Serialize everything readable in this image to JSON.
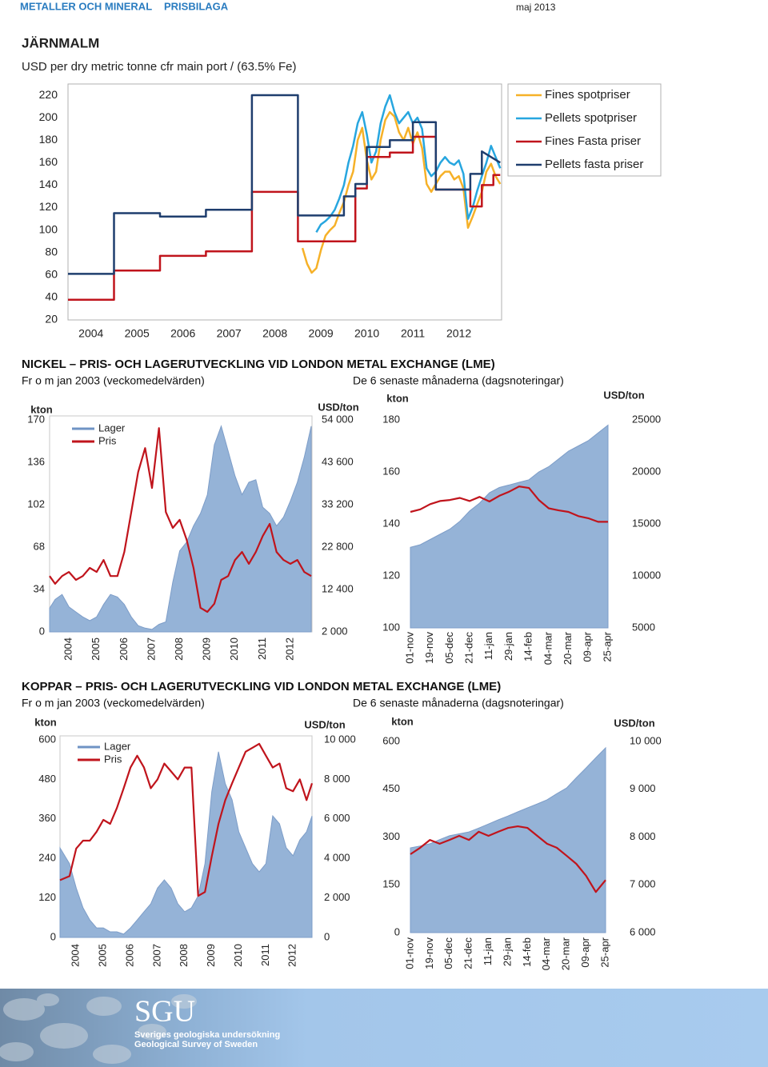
{
  "header": {
    "section": "METALLER OCH MINERAL",
    "subsection": "PRISBILAGA",
    "date": "maj 2013"
  },
  "sections": [
    {
      "title": "NICKEL – PRIS- OCH LAGERUTVECKLING VID LONDON METAL EXCHANGE (LME)",
      "left_subtitle": "Fr o m jan 2003 (veckomedelvärden)",
      "right_subtitle": "De 6 senaste månaderna (dagsnoteringar)"
    },
    {
      "title": "KOPPAR – PRIS- OCH LAGERUTVECKLING VID LONDON METAL EXCHANGE (LME)",
      "left_subtitle": "Fr o m jan 2003 (veckomedelvärden)",
      "right_subtitle": "De 6 senaste månaderna (dagsnoteringar)"
    }
  ],
  "footer": {
    "logo": "SGU",
    "line1": "Sveriges geologiska undersökning",
    "line2": "Geological Survey of Sweden"
  },
  "chart_data": [
    {
      "type": "line",
      "title": "JÄRNMALM",
      "subtitle": "USD per dry metric tonne cfr main port / (63.5% Fe)",
      "xlim": [
        2004,
        2013.43
      ],
      "xticks": [
        {
          "value": 2004.5,
          "label": "2004"
        },
        {
          "value": 2005.5,
          "label": "2005"
        },
        {
          "value": 2006.5,
          "label": "2006"
        },
        {
          "value": 2007.5,
          "label": "2007"
        },
        {
          "value": 2008.5,
          "label": "2008"
        },
        {
          "value": 2009.5,
          "label": "2009"
        },
        {
          "value": 2010.5,
          "label": "2010"
        },
        {
          "value": 2011.5,
          "label": "2011"
        },
        {
          "value": 2012.5,
          "label": "2012"
        }
      ],
      "ylim": [
        20,
        230
      ],
      "yticks": [
        20,
        40,
        60,
        80,
        100,
        120,
        140,
        160,
        180,
        200,
        220
      ],
      "legend": "right",
      "series": [
        {
          "name": "Fines spotpriser",
          "color": "#f6b128",
          "x": [
            2009.1,
            2009.2,
            2009.3,
            2009.4,
            2009.5,
            2009.6,
            2009.7,
            2009.8,
            2009.9,
            2010,
            2010.1,
            2010.2,
            2010.3,
            2010.4,
            2010.5,
            2010.6,
            2010.7,
            2010.8,
            2010.9,
            2011,
            2011.1,
            2011.2,
            2011.3,
            2011.4,
            2011.5,
            2011.6,
            2011.7,
            2011.8,
            2011.9,
            2012,
            2012.1,
            2012.2,
            2012.3,
            2012.4,
            2012.5,
            2012.6,
            2012.7,
            2012.8,
            2012.9,
            2013,
            2013.1,
            2013.2,
            2013.3,
            2013.4
          ],
          "values": [
            84,
            70,
            62,
            66,
            82,
            95,
            100,
            104,
            115,
            125,
            140,
            152,
            180,
            191,
            162,
            145,
            152,
            180,
            198,
            205,
            201,
            187,
            180,
            191,
            177,
            187,
            173,
            141,
            134,
            141,
            148,
            152,
            152,
            145,
            148,
            137,
            102,
            112,
            123,
            134,
            152,
            159,
            148,
            141
          ]
        },
        {
          "name": "Pellets spotpriser",
          "color": "#27a6df",
          "x": [
            2009.4,
            2009.5,
            2009.6,
            2009.7,
            2009.8,
            2009.9,
            2010,
            2010.1,
            2010.2,
            2010.3,
            2010.4,
            2010.5,
            2010.6,
            2010.7,
            2010.8,
            2010.9,
            2011,
            2011.1,
            2011.2,
            2011.3,
            2011.4,
            2011.5,
            2011.6,
            2011.7,
            2011.8,
            2011.9,
            2012,
            2012.1,
            2012.2,
            2012.3,
            2012.4,
            2012.5,
            2012.6,
            2012.7,
            2012.8,
            2012.9,
            2013,
            2013.1,
            2013.2,
            2013.3,
            2013.4
          ],
          "values": [
            98,
            105,
            108,
            112,
            118,
            128,
            140,
            160,
            175,
            195,
            205,
            185,
            160,
            170,
            195,
            210,
            220,
            205,
            195,
            200,
            205,
            195,
            200,
            190,
            155,
            148,
            152,
            160,
            165,
            160,
            158,
            162,
            150,
            110,
            120,
            135,
            148,
            160,
            175,
            165,
            155
          ]
        },
        {
          "name": "Fines Fasta priser",
          "color": "#c0141c",
          "x": [
            2004,
            2005,
            2005,
            2006,
            2006,
            2007,
            2007,
            2008,
            2008,
            2009,
            2009,
            2010.25,
            2010.25,
            2010.5,
            2010.5,
            2011,
            2011,
            2011.5,
            2011.5,
            2012,
            2012,
            2012.75,
            2012.75,
            2013,
            2013,
            2013.25,
            2013.25,
            2013.4
          ],
          "values": [
            38,
            38,
            64,
            64,
            77,
            77,
            81,
            81,
            134,
            134,
            90,
            90,
            137,
            137,
            165,
            165,
            169,
            169,
            183,
            183,
            136,
            136,
            121,
            121,
            140,
            140,
            149,
            149
          ]
        },
        {
          "name": "Pellets fasta priser",
          "color": "#1f3e6e",
          "x": [
            2004,
            2005,
            2005,
            2006,
            2006,
            2007,
            2007,
            2008,
            2008,
            2009,
            2009,
            2010,
            2010,
            2010.25,
            2010.25,
            2010.5,
            2010.5,
            2011,
            2011,
            2011.5,
            2011.5,
            2012,
            2012,
            2012.75,
            2012.75,
            2013,
            2013,
            2013.4
          ],
          "values": [
            61,
            61,
            115,
            115,
            112,
            112,
            118,
            118,
            220,
            220,
            113,
            113,
            130,
            130,
            141,
            141,
            174,
            174,
            180,
            180,
            196,
            196,
            136,
            136,
            150,
            150,
            170,
            160
          ]
        }
      ]
    },
    {
      "type": "combo",
      "ylabel": "kton",
      "y2label": "USD/ton",
      "legend": "upper left",
      "xlim": [
        2003.3,
        2012.78
      ],
      "xticks": [
        2004,
        2005,
        2006,
        2007,
        2008,
        2009,
        2010,
        2011,
        2012
      ],
      "ylim": [
        0,
        170
      ],
      "yticks": [
        0,
        34,
        68,
        102,
        136,
        170
      ],
      "y2lim": [
        2000,
        54000
      ],
      "y2ticks": [
        {
          "value": 2000,
          "label": "2 000"
        },
        {
          "value": 12400,
          "label": "12 400"
        },
        {
          "value": 22800,
          "label": "22 800"
        },
        {
          "value": 33200,
          "label": "33 200"
        },
        {
          "value": 43600,
          "label": "43 600"
        },
        {
          "value": 54000,
          "label": "54 000"
        }
      ],
      "x": [
        2003.3,
        2003.5,
        2003.75,
        2004,
        2004.25,
        2004.5,
        2004.75,
        2005,
        2005.25,
        2005.5,
        2005.75,
        2006,
        2006.25,
        2006.5,
        2006.75,
        2007,
        2007.25,
        2007.5,
        2007.75,
        2008,
        2008.25,
        2008.5,
        2008.75,
        2009,
        2009.25,
        2009.5,
        2009.75,
        2010,
        2010.25,
        2010.5,
        2010.75,
        2011,
        2011.25,
        2011.5,
        2011.75,
        2012,
        2012.25,
        2012.5,
        2012.75
      ],
      "series": [
        {
          "name": "Lager",
          "type": "area",
          "color": "#95b3d7",
          "values": [
            19,
            26,
            30,
            20,
            16,
            12,
            9,
            12,
            22,
            30,
            28,
            22,
            12,
            5,
            3,
            2,
            6,
            8,
            40,
            65,
            72,
            85,
            95,
            110,
            150,
            165,
            145,
            125,
            110,
            120,
            122,
            100,
            95,
            85,
            92,
            105,
            120,
            140,
            165
          ]
        },
        {
          "name": "Pris",
          "type": "line",
          "axis": "y2",
          "color": "#c0141c",
          "values": [
            15700,
            13800,
            15700,
            16700,
            14750,
            15700,
            17700,
            16700,
            19650,
            15700,
            15700,
            21600,
            31400,
            41200,
            47100,
            37300,
            52000,
            31400,
            27500,
            29500,
            24600,
            17700,
            7900,
            6900,
            8900,
            14750,
            15700,
            19650,
            21600,
            18700,
            21600,
            25500,
            28500,
            21600,
            19650,
            18700,
            19650,
            16700,
            15700
          ]
        }
      ]
    },
    {
      "type": "combo",
      "ylabel": "kton",
      "y2label": "USD/ton",
      "categories": [
        "01-nov",
        null,
        "19-nov",
        null,
        "05-dec",
        null,
        "21-dec",
        null,
        "11-jan",
        null,
        "29-jan",
        null,
        "14-feb",
        null,
        "04-mar",
        null,
        "20-mar",
        null,
        "09-apr",
        null,
        "25-apr"
      ],
      "ylim": [
        100,
        180
      ],
      "yticks": [
        100,
        120,
        140,
        160,
        180
      ],
      "y2lim": [
        5000,
        25000
      ],
      "y2ticks": [
        5000,
        10000,
        15000,
        20000,
        25000
      ],
      "series": [
        {
          "name": "Lager",
          "type": "area",
          "color": "#95b3d7",
          "values": [
            131,
            132,
            134,
            136,
            138,
            141,
            145,
            148,
            152,
            154,
            155,
            156,
            157,
            160,
            162,
            165,
            168,
            170,
            172,
            175,
            178
          ]
        },
        {
          "name": "Pris",
          "type": "line",
          "axis": "y2",
          "color": "#c0141c",
          "values": [
            16150,
            16400,
            16900,
            17200,
            17300,
            17500,
            17200,
            17600,
            17150,
            17700,
            18100,
            18600,
            18450,
            17300,
            16500,
            16300,
            16150,
            15750,
            15550,
            15200,
            15200
          ]
        }
      ]
    },
    {
      "type": "combo",
      "ylabel": "kton",
      "y2label": "USD/ton",
      "legend": "upper left",
      "xlim": [
        2003.4,
        2012.7
      ],
      "xticks": [
        2004,
        2005,
        2006,
        2007,
        2008,
        2009,
        2010,
        2011,
        2012
      ],
      "ylim": [
        0,
        600
      ],
      "yticks": [
        0,
        120,
        240,
        360,
        480,
        600
      ],
      "y2lim": [
        0,
        10000
      ],
      "y2ticks": [
        0,
        {
          "value": 2000,
          "label": "2 000"
        },
        {
          "value": 4000,
          "label": "4 000"
        },
        {
          "value": 6000,
          "label": "6 000"
        },
        {
          "value": 8000,
          "label": "8 000"
        },
        {
          "value": 10000,
          "label": "10 000"
        }
      ],
      "x": [
        2003.4,
        2003.75,
        2004,
        2004.25,
        2004.5,
        2004.75,
        2005,
        2005.25,
        2005.5,
        2005.75,
        2006,
        2006.25,
        2006.5,
        2006.75,
        2007,
        2007.25,
        2007.5,
        2007.75,
        2008,
        2008.25,
        2008.5,
        2008.75,
        2009,
        2009.25,
        2009.5,
        2009.75,
        2010,
        2010.25,
        2010.5,
        2010.75,
        2011,
        2011.25,
        2011.5,
        2011.75,
        2012,
        2012.25,
        2012.5,
        2012.7
      ],
      "series": [
        {
          "name": "Lager",
          "type": "area",
          "color": "#95b3d7",
          "values": [
            272,
            224,
            150,
            90,
            53,
            29,
            29,
            17,
            17,
            10,
            29,
            53,
            78,
            102,
            150,
            175,
            150,
            102,
            78,
            90,
            126,
            224,
            442,
            564,
            467,
            418,
            321,
            272,
            224,
            199,
            224,
            369,
            345,
            272,
            248,
            296,
            321,
            369
          ]
        },
        {
          "name": "Pris",
          "type": "line",
          "axis": "y2",
          "color": "#c0141c",
          "values": [
            2900,
            3100,
            4500,
            4900,
            4900,
            5350,
            5950,
            5750,
            6550,
            7550,
            8600,
            9200,
            8600,
            7550,
            8000,
            8800,
            8400,
            8000,
            8600,
            8600,
            2100,
            2300,
            4100,
            5750,
            6950,
            7800,
            8600,
            9400,
            9600,
            9800,
            9200,
            8600,
            8800,
            7550,
            7400,
            8000,
            6950,
            7800
          ]
        }
      ]
    },
    {
      "type": "combo",
      "ylabel": "kton",
      "y2label": "USD/ton",
      "categories": [
        "01-nov",
        null,
        "19-nov",
        null,
        "05-dec",
        null,
        "21-dec",
        null,
        "11-jan",
        null,
        "29-jan",
        null,
        "14-feb",
        null,
        "04-mar",
        null,
        "20-mar",
        null,
        "09-apr",
        null,
        "25-apr"
      ],
      "ylim": [
        0,
        600
      ],
      "yticks": [
        0,
        150,
        300,
        450,
        600
      ],
      "y2lim": [
        6000,
        10000
      ],
      "y2ticks": [
        {
          "value": 6000,
          "label": "6 000"
        },
        {
          "value": 7000,
          "label": "7 000"
        },
        {
          "value": 8000,
          "label": "8 000"
        },
        {
          "value": 9000,
          "label": "9 000"
        },
        {
          "value": 10000,
          "label": "10 000"
        }
      ],
      "series": [
        {
          "name": "Lager",
          "type": "area",
          "color": "#95b3d7",
          "values": [
            266,
            272,
            279,
            292,
            304,
            310,
            316,
            328,
            341,
            354,
            366,
            379,
            392,
            404,
            417,
            436,
            454,
            486,
            517,
            549,
            580
          ]
        },
        {
          "name": "Pris",
          "type": "line",
          "axis": "y2",
          "color": "#c0141c",
          "values": [
            7640,
            7775,
            7940,
            7860,
            7940,
            8025,
            7940,
            8110,
            8025,
            8110,
            8190,
            8225,
            8190,
            8025,
            7860,
            7775,
            7610,
            7440,
            7190,
            6850,
            7100
          ]
        }
      ]
    }
  ]
}
